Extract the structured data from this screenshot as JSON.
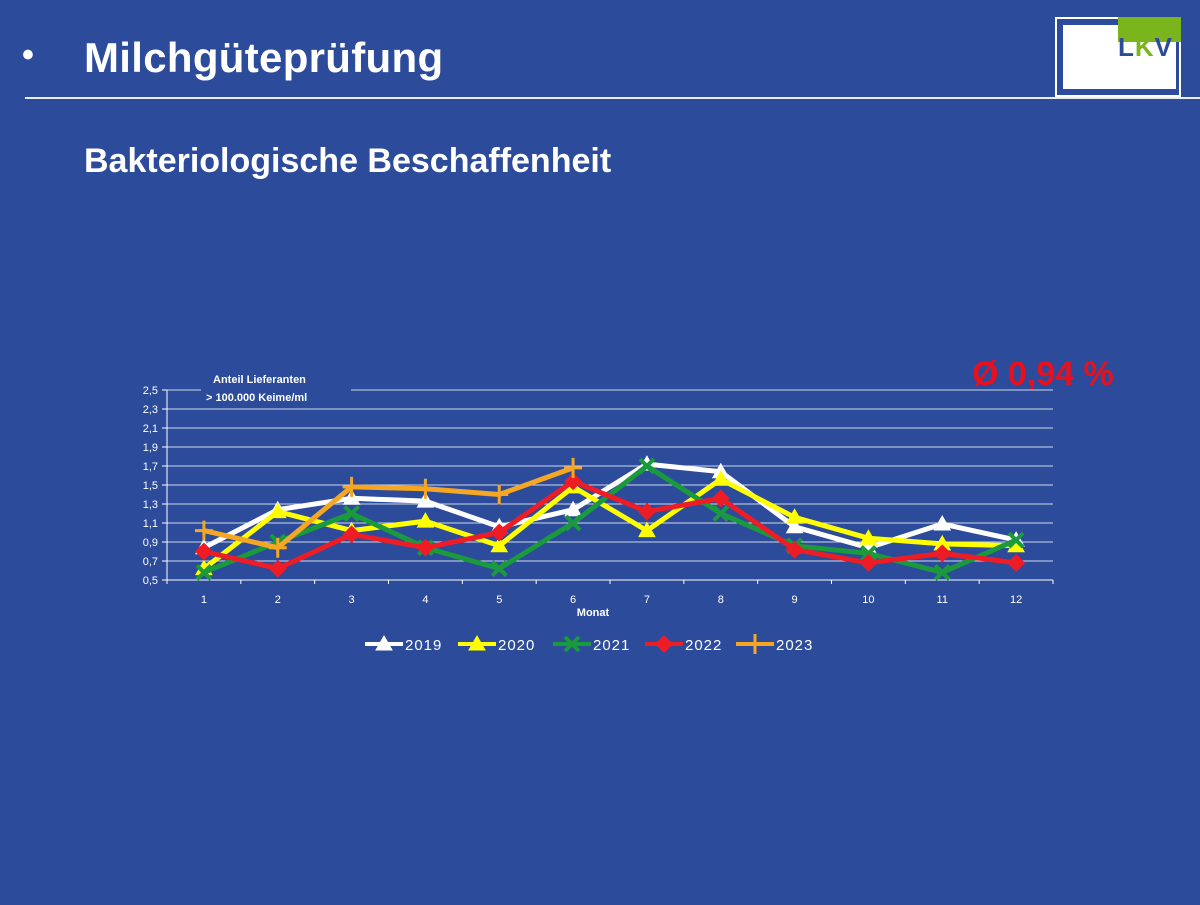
{
  "header": {
    "bullet": "•",
    "title": "Milchgüteprüfung",
    "subtitle": "Bakteriologische Beschaffenheit",
    "logo_text": "LKV"
  },
  "average_label": "Ø 0,94 %",
  "colors": {
    "background": "#2c4b9b",
    "average": "#e8101c",
    "logo_green": "#7ab51d"
  },
  "chart_data": {
    "type": "line",
    "annotation_line1": "Anteil Lieferanten",
    "annotation_line2": "> 100.000 Keime/ml",
    "xlabel": "Monat",
    "ylabel": "",
    "ylim": [
      0.5,
      2.5
    ],
    "yticks": [
      "2,5",
      "2,3",
      "2,1",
      "1,9",
      "1,7",
      "1,5",
      "1,3",
      "1,1",
      "0,9",
      "0,7",
      "0,5"
    ],
    "categories": [
      "1",
      "2",
      "3",
      "4",
      "5",
      "6",
      "7",
      "8",
      "9",
      "10",
      "11",
      "12"
    ],
    "grid": true,
    "legend_position": "bottom",
    "series": [
      {
        "name": "2019",
        "color": "#ffffff",
        "marker": "triangle",
        "values": [
          0.84,
          1.24,
          1.36,
          1.33,
          1.06,
          1.24,
          1.72,
          1.64,
          1.06,
          0.84,
          1.09,
          0.92
        ]
      },
      {
        "name": "2020",
        "color": "#ffff00",
        "marker": "triangle",
        "values": [
          0.62,
          1.22,
          1.02,
          1.12,
          0.86,
          1.48,
          1.02,
          1.56,
          1.16,
          0.94,
          0.88,
          0.86
        ]
      },
      {
        "name": "2021",
        "color": "#1a9a3c",
        "marker": "x",
        "values": [
          0.58,
          0.9,
          1.2,
          0.84,
          0.62,
          1.1,
          1.7,
          1.2,
          0.86,
          0.78,
          0.58,
          0.92
        ]
      },
      {
        "name": "2022",
        "color": "#ee1c25",
        "marker": "diamond",
        "values": [
          0.8,
          0.62,
          0.98,
          0.84,
          1.0,
          1.54,
          1.22,
          1.36,
          0.82,
          0.68,
          0.78,
          0.68
        ]
      },
      {
        "name": "2023",
        "color": "#f5a623",
        "marker": "plus",
        "values": [
          1.02,
          0.84,
          1.48,
          1.46,
          1.4,
          1.68,
          null,
          null,
          null,
          null,
          null,
          null
        ]
      }
    ]
  }
}
